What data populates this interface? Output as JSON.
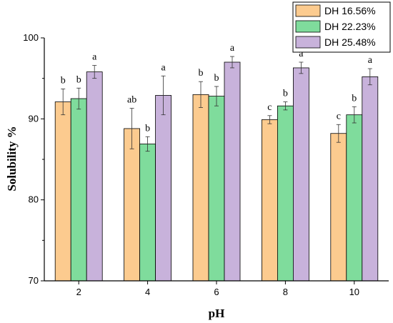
{
  "chart_data": {
    "type": "bar",
    "xlabel": "pH",
    "ylabel": "Solubility %",
    "categories": [
      "2",
      "4",
      "6",
      "8",
      "10"
    ],
    "ylim": [
      70,
      100
    ],
    "yticks": [
      70,
      80,
      90,
      100
    ],
    "grid": false,
    "legend_position": "top-right",
    "series": [
      {
        "name": "DH 16.56%",
        "color": "#FCCB8F",
        "values": [
          92.1,
          88.8,
          93.0,
          89.9,
          88.2
        ],
        "errors": [
          1.6,
          2.5,
          1.6,
          0.5,
          1.1
        ],
        "labels": [
          "b",
          "ab",
          "b",
          "c",
          "c"
        ]
      },
      {
        "name": "DH 22.23%",
        "color": "#7FDC9C",
        "values": [
          92.5,
          86.9,
          92.8,
          91.6,
          90.5
        ],
        "errors": [
          1.3,
          0.9,
          1.2,
          0.5,
          1.0
        ],
        "labels": [
          "b",
          "b",
          "b",
          "b",
          "b"
        ]
      },
      {
        "name": "DH 25.48%",
        "color": "#C8B2DB",
        "values": [
          95.8,
          92.9,
          97.0,
          96.3,
          95.2
        ],
        "errors": [
          0.8,
          2.4,
          0.7,
          0.7,
          1.0
        ],
        "labels": [
          "a",
          "a",
          "a",
          "a",
          "a"
        ]
      }
    ]
  }
}
